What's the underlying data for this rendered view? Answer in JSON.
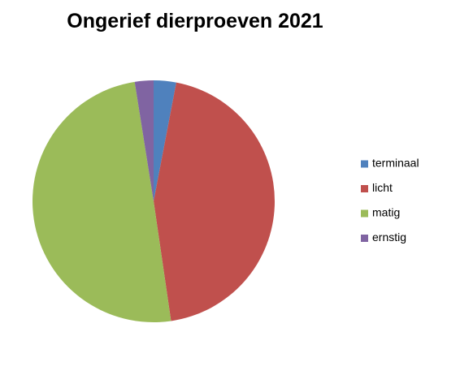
{
  "chart_data": {
    "type": "pie",
    "title": "Ongerief dierproeven 2021",
    "categories": [
      "terminaal",
      "licht",
      "matig",
      "ernstig"
    ],
    "values": [
      3,
      44.7,
      49.8,
      2.5
    ],
    "colors": [
      "#4f81bd",
      "#c0504d",
      "#9bbb59",
      "#8064a2"
    ],
    "legend": "right"
  }
}
